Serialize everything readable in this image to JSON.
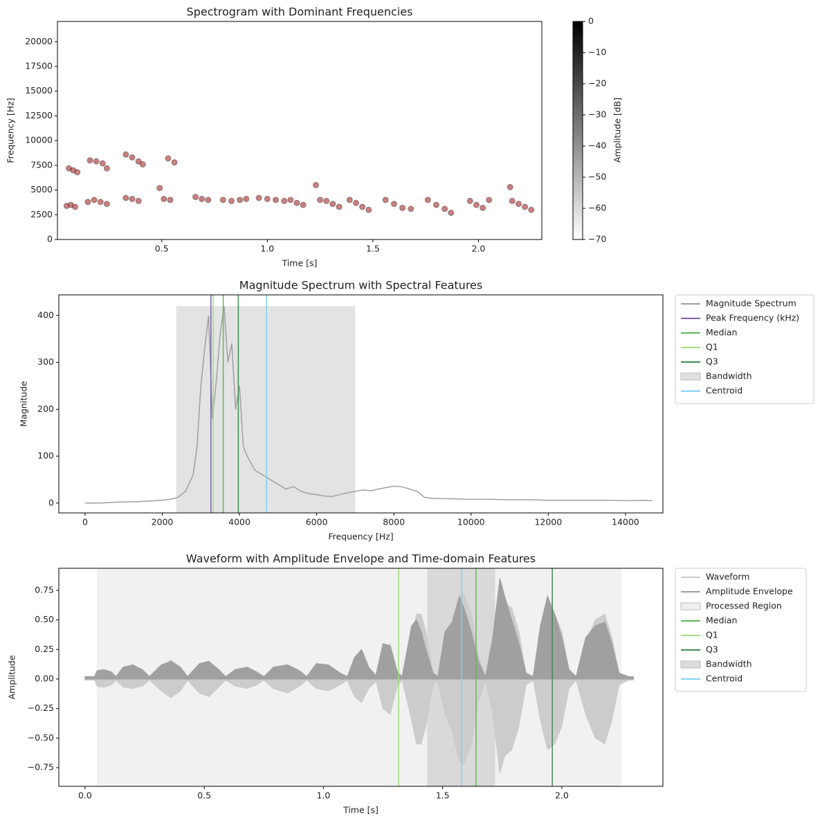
{
  "chart_data": [
    {
      "type": "heatmap",
      "title": "Spectrogram with Dominant Frequencies",
      "xlabel": "Time [s]",
      "ylabel": "Frequency [Hz]",
      "xlim": [
        0.006,
        2.3
      ],
      "ylim": [
        0,
        22050
      ],
      "xticks": [
        0.5,
        {
          "value": 1,
          "label": "1.0"
        },
        1.5,
        {
          "value": 2,
          "label": "2.0"
        }
      ],
      "yticks": [
        0,
        2500,
        5000,
        7500,
        10000,
        12500,
        15000,
        17500,
        20000
      ],
      "points": {
        "color": "#a01818",
        "x": [
          0.05,
          0.07,
          0.09,
          0.06,
          0.08,
          0.1,
          0.15,
          0.18,
          0.21,
          0.24,
          0.16,
          0.19,
          0.22,
          0.24,
          0.33,
          0.36,
          0.39,
          0.33,
          0.36,
          0.39,
          0.41,
          0.49,
          0.51,
          0.54,
          0.53,
          0.56,
          0.66,
          0.69,
          0.72,
          0.79,
          0.83,
          0.87,
          0.9,
          0.96,
          1.0,
          1.04,
          1.08,
          1.11,
          1.14,
          1.17,
          1.23,
          1.25,
          1.28,
          1.31,
          1.34,
          1.39,
          1.42,
          1.45,
          1.48,
          1.56,
          1.6,
          1.64,
          1.68,
          1.76,
          1.8,
          1.84,
          1.87,
          1.96,
          1.99,
          2.02,
          2.05,
          2.15,
          2.16,
          2.19,
          2.22,
          2.25
        ],
        "values": [
          3400,
          3500,
          3300,
          7200,
          7000,
          6800,
          3800,
          4000,
          3800,
          3600,
          8000,
          7900,
          7700,
          7200,
          4200,
          4100,
          3900,
          8600,
          8300,
          7900,
          7600,
          5200,
          4100,
          4000,
          8200,
          7800,
          4300,
          4100,
          4000,
          4000,
          3900,
          4000,
          4100,
          4200,
          4100,
          4000,
          3900,
          4000,
          3700,
          3500,
          5500,
          4000,
          3900,
          3600,
          3300,
          4000,
          3700,
          3300,
          3000,
          4000,
          3600,
          3200,
          3100,
          4000,
          3500,
          3100,
          2700,
          3900,
          3500,
          3200,
          4000,
          5300,
          3900,
          3600,
          3300,
          3000
        ]
      },
      "colorbar": {
        "label": "Amplitude [dB]",
        "lim": [
          -70,
          0
        ],
        "ticks": [
          0,
          {
            "value": -10,
            "label": "−10"
          },
          {
            "value": -20,
            "label": "−20"
          },
          {
            "value": -30,
            "label": "−30"
          },
          {
            "value": -40,
            "label": "−40"
          },
          {
            "value": -50,
            "label": "−50"
          },
          {
            "value": -60,
            "label": "−60"
          },
          {
            "value": -70,
            "label": "−70"
          }
        ]
      }
    },
    {
      "type": "line",
      "title": "Magnitude Spectrum with Spectral Features",
      "xlabel": "Frequency [Hz]",
      "ylabel": "Magnitude",
      "xlim": [
        -680,
        14970
      ],
      "ylim": [
        -21,
        444
      ],
      "xticks": [
        0,
        2000,
        4000,
        6000,
        8000,
        10000,
        12000,
        14000
      ],
      "yticks": [
        0,
        100,
        200,
        300,
        400
      ],
      "legend": "outside upper right",
      "x": [
        0,
        200,
        400,
        600,
        800,
        1000,
        1200,
        1400,
        1600,
        1800,
        2000,
        2200,
        2400,
        2600,
        2800,
        2900,
        3000,
        3100,
        3200,
        3300,
        3400,
        3500,
        3600,
        3700,
        3800,
        3900,
        4000,
        4100,
        4200,
        4400,
        4600,
        4800,
        5000,
        5200,
        5400,
        5600,
        5800,
        6000,
        6200,
        6400,
        6600,
        6800,
        7000,
        7200,
        7400,
        7600,
        7800,
        8000,
        8200,
        8400,
        8600,
        8800,
        9000,
        9500,
        10000,
        10500,
        11000,
        11500,
        12000,
        12500,
        13000,
        13500,
        14000,
        14400,
        14700
      ],
      "series": [
        {
          "name": "Magnitude Spectrum",
          "color": "#a0a0a0",
          "values": [
            0,
            0,
            0,
            1,
            2,
            2,
            3,
            3,
            4,
            5,
            6,
            8,
            12,
            25,
            60,
            120,
            250,
            330,
            400,
            180,
            260,
            360,
            420,
            300,
            340,
            200,
            250,
            120,
            100,
            70,
            60,
            50,
            40,
            30,
            35,
            25,
            20,
            18,
            15,
            14,
            18,
            22,
            25,
            28,
            26,
            30,
            33,
            36,
            35,
            30,
            25,
            12,
            10,
            9,
            8,
            8,
            7,
            7,
            6,
            6,
            6,
            6,
            5,
            6,
            5
          ]
        }
      ],
      "markers": [
        {
          "name": "Peak Frequency (kHz)",
          "color": "#7b5fb0",
          "value": 3260
        },
        {
          "name": "Median",
          "color": "#5cb85c",
          "value": 3580
        },
        {
          "name": "Q1",
          "color": "#a4dc80",
          "value": 3320
        },
        {
          "name": "Q3",
          "color": "#3e8c55",
          "value": 3970
        },
        {
          "name": "Bandwidth",
          "color": "#cccccc",
          "range": [
            2360,
            7000
          ],
          "height": 420
        },
        {
          "name": "Centroid",
          "color": "#7fd0f5",
          "value": 4700
        }
      ]
    },
    {
      "type": "area",
      "title": "Waveform with Amplitude Envelope and Time-domain Features",
      "xlabel": "Time [s]",
      "ylabel": "Amplitude",
      "xlim": [
        -0.11,
        2.424
      ],
      "ylim": [
        -0.908,
        0.937
      ],
      "xticks": [
        {
          "value": 0,
          "label": "0.0"
        },
        0.5,
        {
          "value": 1,
          "label": "1.0"
        },
        1.5,
        {
          "value": 2,
          "label": "2.0"
        }
      ],
      "yticks": [
        {
          "value": -0.75,
          "label": "−0.75"
        },
        {
          "value": -0.5,
          "label": "−0.50"
        },
        {
          "value": -0.25,
          "label": "−0.25"
        },
        {
          "value": 0,
          "label": "0.00"
        },
        0.25,
        {
          "value": 0.5,
          "label": "0.50"
        },
        0.75
      ],
      "legend": "outside upper right",
      "x": [
        0,
        0.04,
        0.05,
        0.08,
        0.11,
        0.13,
        0.16,
        0.2,
        0.24,
        0.27,
        0.32,
        0.36,
        0.4,
        0.43,
        0.48,
        0.52,
        0.56,
        0.59,
        0.63,
        0.68,
        0.72,
        0.75,
        0.79,
        0.85,
        0.9,
        0.93,
        0.97,
        1.02,
        1.07,
        1.1,
        1.13,
        1.16,
        1.19,
        1.22,
        1.25,
        1.28,
        1.31,
        1.33,
        1.37,
        1.39,
        1.41,
        1.43,
        1.46,
        1.48,
        1.51,
        1.54,
        1.57,
        1.59,
        1.62,
        1.65,
        1.68,
        1.71,
        1.74,
        1.76,
        1.79,
        1.82,
        1.85,
        1.88,
        1.91,
        1.94,
        1.97,
        2.0,
        2.03,
        2.06,
        2.1,
        2.14,
        2.18,
        2.21,
        2.24,
        2.28,
        2.3
      ],
      "series": [
        {
          "name": "Waveform",
          "color": "#cccccc",
          "values": [
            -0.01,
            -0.01,
            -0.06,
            -0.07,
            -0.05,
            -0.01,
            -0.07,
            -0.08,
            -0.06,
            -0.01,
            -0.1,
            -0.16,
            -0.1,
            -0.01,
            -0.12,
            -0.15,
            -0.07,
            -0.01,
            -0.06,
            -0.08,
            -0.05,
            -0.01,
            -0.08,
            -0.12,
            -0.06,
            -0.01,
            -0.08,
            -0.1,
            -0.05,
            -0.01,
            -0.15,
            -0.2,
            -0.08,
            -0.02,
            -0.25,
            -0.3,
            -0.06,
            -0.01,
            -0.35,
            -0.55,
            -0.55,
            -0.4,
            -0.05,
            -0.01,
            -0.3,
            -0.45,
            -0.7,
            -0.72,
            -0.55,
            -0.2,
            -0.01,
            -0.3,
            -0.8,
            -0.65,
            -0.6,
            -0.4,
            -0.05,
            -0.01,
            -0.35,
            -0.6,
            -0.55,
            -0.4,
            -0.08,
            -0.01,
            -0.3,
            -0.5,
            -0.55,
            -0.35,
            -0.05,
            -0.01,
            -0.01
          ]
        },
        {
          "name": "Amplitude Envelope",
          "color": "#a0a0a0",
          "values": [
            0.02,
            0.02,
            0.07,
            0.08,
            0.06,
            0.02,
            0.1,
            0.12,
            0.08,
            0.02,
            0.12,
            0.15,
            0.1,
            0.02,
            0.13,
            0.15,
            0.08,
            0.02,
            0.08,
            0.1,
            0.06,
            0.02,
            0.1,
            0.12,
            0.07,
            0.02,
            0.13,
            0.12,
            0.05,
            0.02,
            0.18,
            0.25,
            0.1,
            0.03,
            0.3,
            0.28,
            0.06,
            0.02,
            0.45,
            0.5,
            0.4,
            0.25,
            0.05,
            0.02,
            0.4,
            0.48,
            0.7,
            0.6,
            0.4,
            0.15,
            0.02,
            0.35,
            0.85,
            0.7,
            0.5,
            0.3,
            0.05,
            0.02,
            0.45,
            0.7,
            0.55,
            0.35,
            0.08,
            0.02,
            0.35,
            0.45,
            0.48,
            0.3,
            0.05,
            0.02,
            0.02
          ]
        }
      ],
      "markers": [
        {
          "name": "Processed Region",
          "color": "#e6e6e6",
          "range": [
            0.05,
            2.25
          ]
        },
        {
          "name": "Median",
          "color": "#5cb85c",
          "value": 1.64
        },
        {
          "name": "Q1",
          "color": "#a4dc80",
          "value": 1.315
        },
        {
          "name": "Q3",
          "color": "#3e8c55",
          "value": 1.96
        },
        {
          "name": "Bandwidth",
          "color": "#c4c4c4",
          "range": [
            1.435,
            1.72
          ]
        },
        {
          "name": "Centroid",
          "color": "#7fd0f5",
          "value": 1.58
        }
      ]
    }
  ]
}
